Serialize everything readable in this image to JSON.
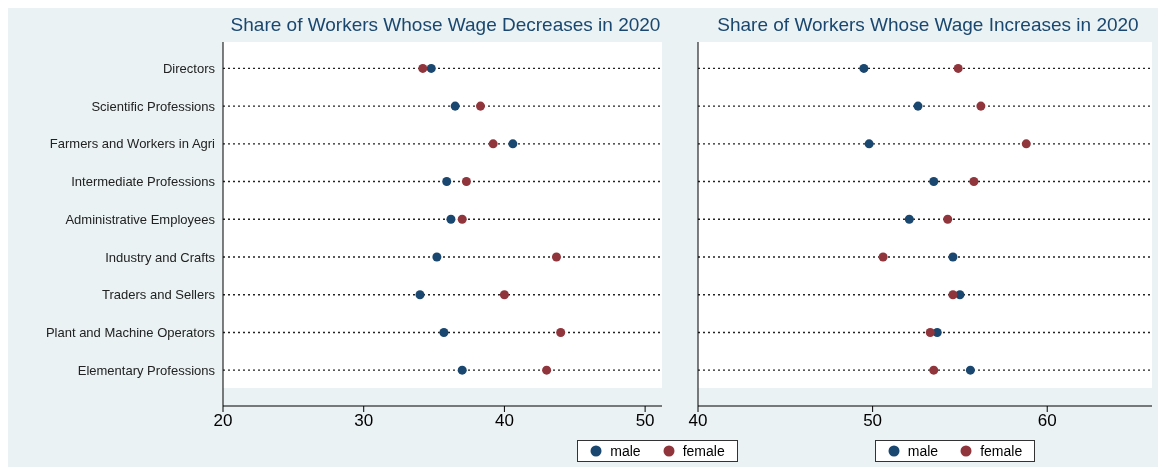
{
  "chart_data": [
    {
      "type": "scatter",
      "title": "Share of Workers Whose Wage Decreases in 2020",
      "orientation": "horizontal",
      "categories": [
        "Directors",
        "Scientific Professions",
        "Farmers and Workers in Agri",
        "Intermediate Professions",
        "Administrative Employees",
        "Industry and Crafts",
        "Traders and Sellers",
        "Plant and Machine Operators",
        "Elementary Professions"
      ],
      "series": [
        {
          "name": "male",
          "color": "#1a476f",
          "values": [
            34.8,
            36.5,
            40.6,
            35.9,
            36.2,
            35.2,
            34.0,
            35.7,
            37.0
          ]
        },
        {
          "name": "female",
          "color": "#90353b",
          "values": [
            34.2,
            38.3,
            39.2,
            37.3,
            37.0,
            43.7,
            40.0,
            44.0,
            43.0
          ]
        }
      ],
      "xlim": [
        20,
        51.2
      ],
      "xticks": [
        20,
        30,
        40,
        50
      ],
      "grid": "y",
      "legend": "bottom",
      "marker": "circle"
    },
    {
      "type": "scatter",
      "title": "Share of Workers Whose Wage Increases in 2020",
      "orientation": "horizontal",
      "categories": [
        null,
        null,
        null,
        null,
        null,
        null,
        null,
        null,
        null
      ],
      "series": [
        {
          "name": "male",
          "color": "#1a476f",
          "values": [
            49.5,
            52.6,
            49.8,
            53.5,
            52.1,
            54.6,
            55.0,
            53.7,
            55.6
          ]
        },
        {
          "name": "female",
          "color": "#90353b",
          "values": [
            54.9,
            56.2,
            58.8,
            55.8,
            54.3,
            50.6,
            54.6,
            53.3,
            53.5
          ]
        }
      ],
      "xlim": [
        40,
        66
      ],
      "xticks": [
        40,
        50,
        60
      ],
      "grid": "y",
      "legend": "bottom",
      "marker": "circle"
    }
  ]
}
